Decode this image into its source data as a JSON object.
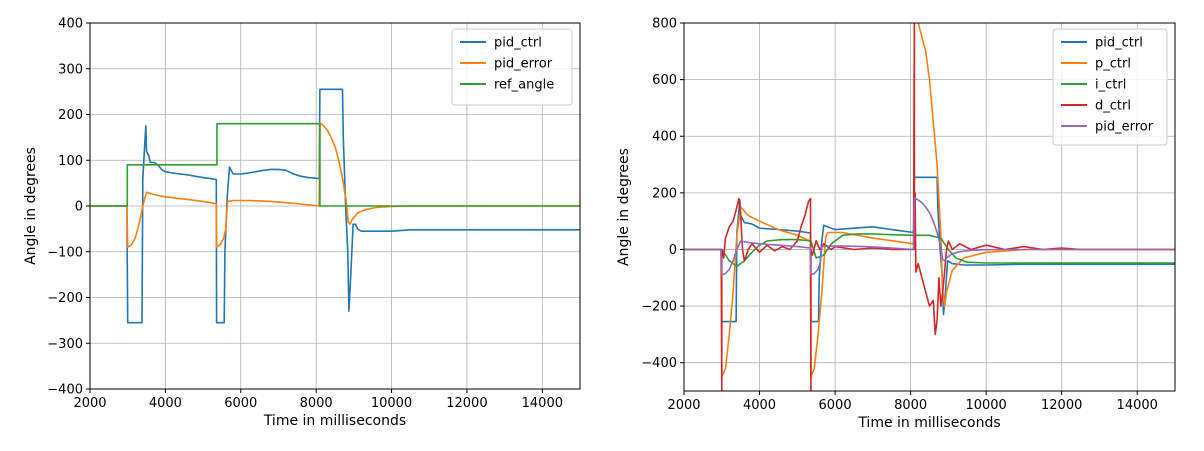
{
  "chart_data": [
    {
      "type": "line",
      "xlabel": "Time in milliseconds",
      "ylabel": "Angle in degrees",
      "xlim": [
        2000,
        15000
      ],
      "ylim": [
        -400,
        400
      ],
      "xticks": [
        2000,
        4000,
        6000,
        8000,
        10000,
        12000,
        14000
      ],
      "yticks": [
        -400,
        -300,
        -200,
        -100,
        0,
        100,
        200,
        300,
        400
      ],
      "xtick_labels": [
        "2000",
        "4000",
        "6000",
        "8000",
        "10000",
        "12000",
        "14000"
      ],
      "ytick_labels": [
        "−400",
        "−300",
        "−200",
        "−100",
        "0",
        "100",
        "200",
        "300",
        "400"
      ],
      "grid": true,
      "legend_position": "top-right",
      "series": [
        {
          "name": "pid_ctrl",
          "color": "#1f77b4",
          "x": [
            2000,
            2980,
            3000,
            3380,
            3400,
            3480,
            3500,
            3560,
            3600,
            3700,
            3800,
            3900,
            4000,
            4200,
            4400,
            4600,
            4800,
            5000,
            5200,
            5350,
            5360,
            5560,
            5580,
            5640,
            5700,
            5800,
            6000,
            6200,
            6400,
            6600,
            6800,
            7000,
            7200,
            7400,
            7600,
            7800,
            8080,
            8100,
            8700,
            8720,
            8780,
            8840,
            8870,
            8920,
            8980,
            9050,
            9100,
            9200,
            9400,
            9600,
            9800,
            10000,
            10500,
            11000,
            11500,
            12000,
            12500,
            13000,
            14000,
            15000
          ],
          "y": [
            0,
            0,
            -255,
            -255,
            60,
            175,
            120,
            110,
            95,
            95,
            90,
            80,
            75,
            72,
            70,
            68,
            65,
            62,
            60,
            58,
            -255,
            -255,
            -100,
            20,
            85,
            70,
            70,
            72,
            75,
            78,
            80,
            80,
            78,
            70,
            65,
            62,
            60,
            255,
            255,
            150,
            0,
            -100,
            -230,
            -150,
            -40,
            -40,
            -50,
            -55,
            -55,
            -55,
            -55,
            -55,
            -52,
            -52,
            -52,
            -52,
            -52,
            -52,
            -52,
            -52
          ]
        },
        {
          "name": "pid_error",
          "color": "#ff7f0e",
          "x": [
            2000,
            2980,
            3000,
            3100,
            3200,
            3300,
            3400,
            3500,
            3700,
            4000,
            4500,
            5000,
            5350,
            5360,
            5450,
            5550,
            5600,
            5650,
            5800,
            6200,
            6800,
            7500,
            8080,
            8100,
            8200,
            8300,
            8400,
            8500,
            8600,
            8700,
            8800,
            8850,
            8900,
            8950,
            9100,
            9300,
            9600,
            10000,
            10500,
            15000
          ],
          "y": [
            0,
            0,
            -90,
            -85,
            -70,
            -40,
            0,
            30,
            25,
            20,
            15,
            10,
            5,
            -90,
            -85,
            -70,
            -50,
            10,
            12,
            12,
            10,
            5,
            0,
            182,
            175,
            165,
            150,
            130,
            100,
            60,
            10,
            -35,
            -40,
            -30,
            -15,
            -8,
            -3,
            -1,
            0,
            0
          ]
        },
        {
          "name": "ref_angle",
          "color": "#2ca02c",
          "x": [
            2000,
            2990,
            2990,
            5370,
            5370,
            8100,
            8100,
            15000
          ],
          "y": [
            0,
            0,
            90,
            90,
            180,
            180,
            0,
            0
          ]
        }
      ]
    },
    {
      "type": "line",
      "xlabel": "Time in milliseconds",
      "ylabel": "Angle in degrees",
      "xlim": [
        2000,
        15000
      ],
      "ylim": [
        -500,
        800
      ],
      "xticks": [
        2000,
        4000,
        6000,
        8000,
        10000,
        12000,
        14000
      ],
      "yticks": [
        -400,
        -200,
        0,
        200,
        400,
        600,
        800
      ],
      "xtick_labels": [
        "2000",
        "4000",
        "6000",
        "8000",
        "10000",
        "12000",
        "14000"
      ],
      "ytick_labels": [
        "−400",
        "−200",
        "0",
        "200",
        "400",
        "600",
        "800"
      ],
      "grid": true,
      "legend_position": "top-right",
      "series": [
        {
          "name": "pid_ctrl",
          "color": "#1f77b4",
          "x": [
            2000,
            2980,
            3000,
            3380,
            3400,
            3480,
            3500,
            3600,
            3800,
            4000,
            4500,
            5000,
            5350,
            5360,
            5560,
            5580,
            5640,
            5700,
            6000,
            6500,
            7000,
            7500,
            8080,
            8100,
            8700,
            8720,
            8780,
            8840,
            8870,
            8920,
            8980,
            9100,
            9400,
            10000,
            11000,
            12000,
            13000,
            15000
          ],
          "y": [
            0,
            0,
            -255,
            -255,
            60,
            175,
            120,
            95,
            90,
            75,
            70,
            65,
            58,
            -255,
            -255,
            -100,
            20,
            85,
            70,
            75,
            80,
            70,
            60,
            255,
            255,
            150,
            0,
            -100,
            -230,
            -150,
            -40,
            -50,
            -55,
            -55,
            -52,
            -52,
            -52,
            -52
          ]
        },
        {
          "name": "p_ctrl",
          "color": "#ff7f0e",
          "x": [
            2000,
            2980,
            3000,
            3100,
            3200,
            3300,
            3400,
            3500,
            3700,
            4000,
            4500,
            5000,
            5350,
            5360,
            5450,
            5550,
            5650,
            5750,
            5800,
            6200,
            7000,
            8080,
            8100,
            8200,
            8300,
            8400,
            8500,
            8600,
            8700,
            8800,
            8850,
            8900,
            8950,
            9100,
            9400,
            10000,
            11000,
            15000
          ],
          "y": [
            0,
            0,
            -450,
            -420,
            -300,
            -150,
            50,
            150,
            120,
            100,
            70,
            50,
            30,
            -450,
            -420,
            -300,
            -150,
            40,
            60,
            60,
            40,
            20,
            900,
            800,
            750,
            700,
            600,
            450,
            300,
            50,
            -150,
            -200,
            -150,
            -75,
            -30,
            -10,
            0,
            0
          ]
        },
        {
          "name": "i_ctrl",
          "color": "#2ca02c",
          "x": [
            2000,
            3000,
            3200,
            3400,
            3600,
            3800,
            4000,
            4200,
            4600,
            5000,
            5360,
            5500,
            5700,
            5900,
            6200,
            6600,
            7000,
            7500,
            8100,
            8500,
            8800,
            9000,
            9200,
            9500,
            10000,
            11000,
            12000,
            15000
          ],
          "y": [
            0,
            0,
            -40,
            -60,
            -40,
            -10,
            15,
            30,
            35,
            35,
            30,
            -30,
            -20,
            20,
            50,
            55,
            55,
            52,
            50,
            50,
            40,
            0,
            -30,
            -45,
            -48,
            -48,
            -48,
            -48
          ]
        },
        {
          "name": "d_ctrl",
          "color": "#d62728",
          "x": [
            2000,
            2990,
            3000,
            3000,
            3050,
            3100,
            3200,
            3300,
            3400,
            3450,
            3500,
            3550,
            3600,
            3700,
            3800,
            4000,
            4200,
            4400,
            4600,
            4800,
            5000,
            5100,
            5200,
            5300,
            5350,
            5360,
            5360,
            5400,
            5500,
            5600,
            5700,
            5800,
            5900,
            6000,
            6500,
            7000,
            7500,
            8000,
            8080,
            8100,
            8100,
            8120,
            8140,
            8200,
            8300,
            8400,
            8500,
            8600,
            8650,
            8700,
            8750,
            8800,
            8850,
            8900,
            8950,
            9000,
            9100,
            9300,
            9600,
            10000,
            10500,
            11000,
            11500,
            12000,
            12500,
            13000,
            15000
          ],
          "y": [
            0,
            0,
            -500,
            0,
            -30,
            40,
            80,
            100,
            150,
            180,
            120,
            0,
            -40,
            0,
            20,
            -10,
            15,
            -5,
            10,
            0,
            30,
            80,
            120,
            170,
            180,
            -500,
            0,
            -20,
            30,
            0,
            20,
            10,
            0,
            10,
            0,
            5,
            0,
            0,
            0,
            800,
            0,
            200,
            -80,
            -50,
            -100,
            -150,
            -200,
            -180,
            -300,
            -250,
            -100,
            -200,
            -150,
            -80,
            0,
            30,
            0,
            20,
            0,
            15,
            0,
            10,
            0,
            5,
            0,
            0,
            0
          ]
        },
        {
          "name": "pid_error",
          "color": "#9467bd",
          "x": [
            2000,
            2980,
            3000,
            3100,
            3200,
            3300,
            3400,
            3500,
            3700,
            4000,
            4500,
            5000,
            5350,
            5360,
            5450,
            5550,
            5600,
            5650,
            5800,
            6200,
            6800,
            7500,
            8080,
            8100,
            8200,
            8300,
            8400,
            8500,
            8600,
            8700,
            8800,
            8850,
            8900,
            8950,
            9100,
            9300,
            9600,
            10000,
            10500,
            15000
          ],
          "y": [
            0,
            0,
            -90,
            -85,
            -70,
            -40,
            0,
            30,
            25,
            20,
            15,
            10,
            5,
            -90,
            -85,
            -70,
            -50,
            10,
            12,
            12,
            10,
            5,
            0,
            182,
            175,
            165,
            150,
            130,
            100,
            60,
            10,
            -35,
            -40,
            -30,
            -15,
            -8,
            -3,
            -1,
            0,
            0
          ]
        }
      ]
    }
  ]
}
